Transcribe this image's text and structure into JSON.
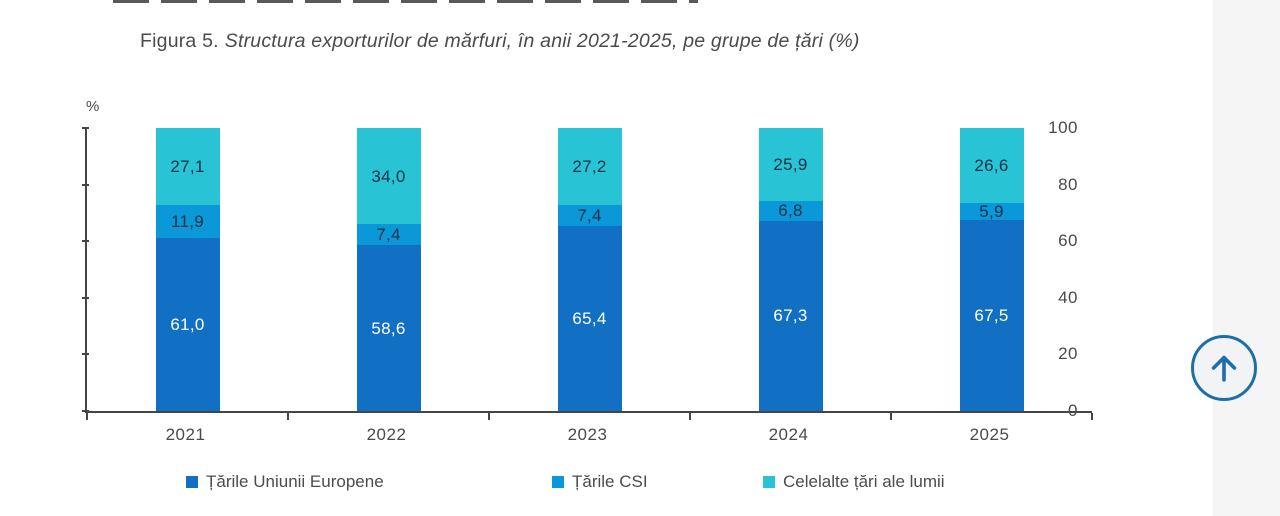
{
  "title": {
    "prefix": "Figura 5.",
    "italic": "Structura exporturilor de mărfuri, în anii 2021-2025, pe grupe de țări (%)"
  },
  "chart_data": {
    "type": "bar",
    "stacked": true,
    "title": "Structura exporturilor de mărfuri, în anii 2021-2025, pe grupe de țări (%)",
    "ylabel": "%",
    "xlabel": "",
    "ylim": [
      0,
      100
    ],
    "yticks": [
      0,
      20,
      40,
      60,
      80,
      100
    ],
    "grid": false,
    "legend_position": "bottom",
    "categories": [
      "2021",
      "2022",
      "2023",
      "2024",
      "2025"
    ],
    "series": [
      {
        "name": "Țările Uniunii Europene",
        "color": "#1170c3",
        "label_color": "#ffffff",
        "values": [
          61.0,
          58.6,
          65.4,
          67.3,
          67.5
        ],
        "labels": [
          "61,0",
          "58,6",
          "65,4",
          "67,3",
          "67,5"
        ]
      },
      {
        "name": "Țările CSI",
        "color": "#0a98d8",
        "label_color": "#143047",
        "values": [
          11.9,
          7.4,
          7.4,
          6.8,
          5.9
        ],
        "labels": [
          "11,9",
          "7,4",
          "7,4",
          "6,8",
          "5,9"
        ]
      },
      {
        "name": "Celelalte țări ale lumii",
        "color": "#28c4d6",
        "label_color": "#143047",
        "values": [
          27.1,
          34.0,
          27.2,
          25.9,
          26.6
        ],
        "labels": [
          "27,1",
          "34,0",
          "27,2",
          "25,9",
          "26,6"
        ]
      }
    ],
    "axis_color": "#454545"
  },
  "scroll_button": {
    "icon": "arrow-up",
    "color": "#1e6fa8"
  }
}
